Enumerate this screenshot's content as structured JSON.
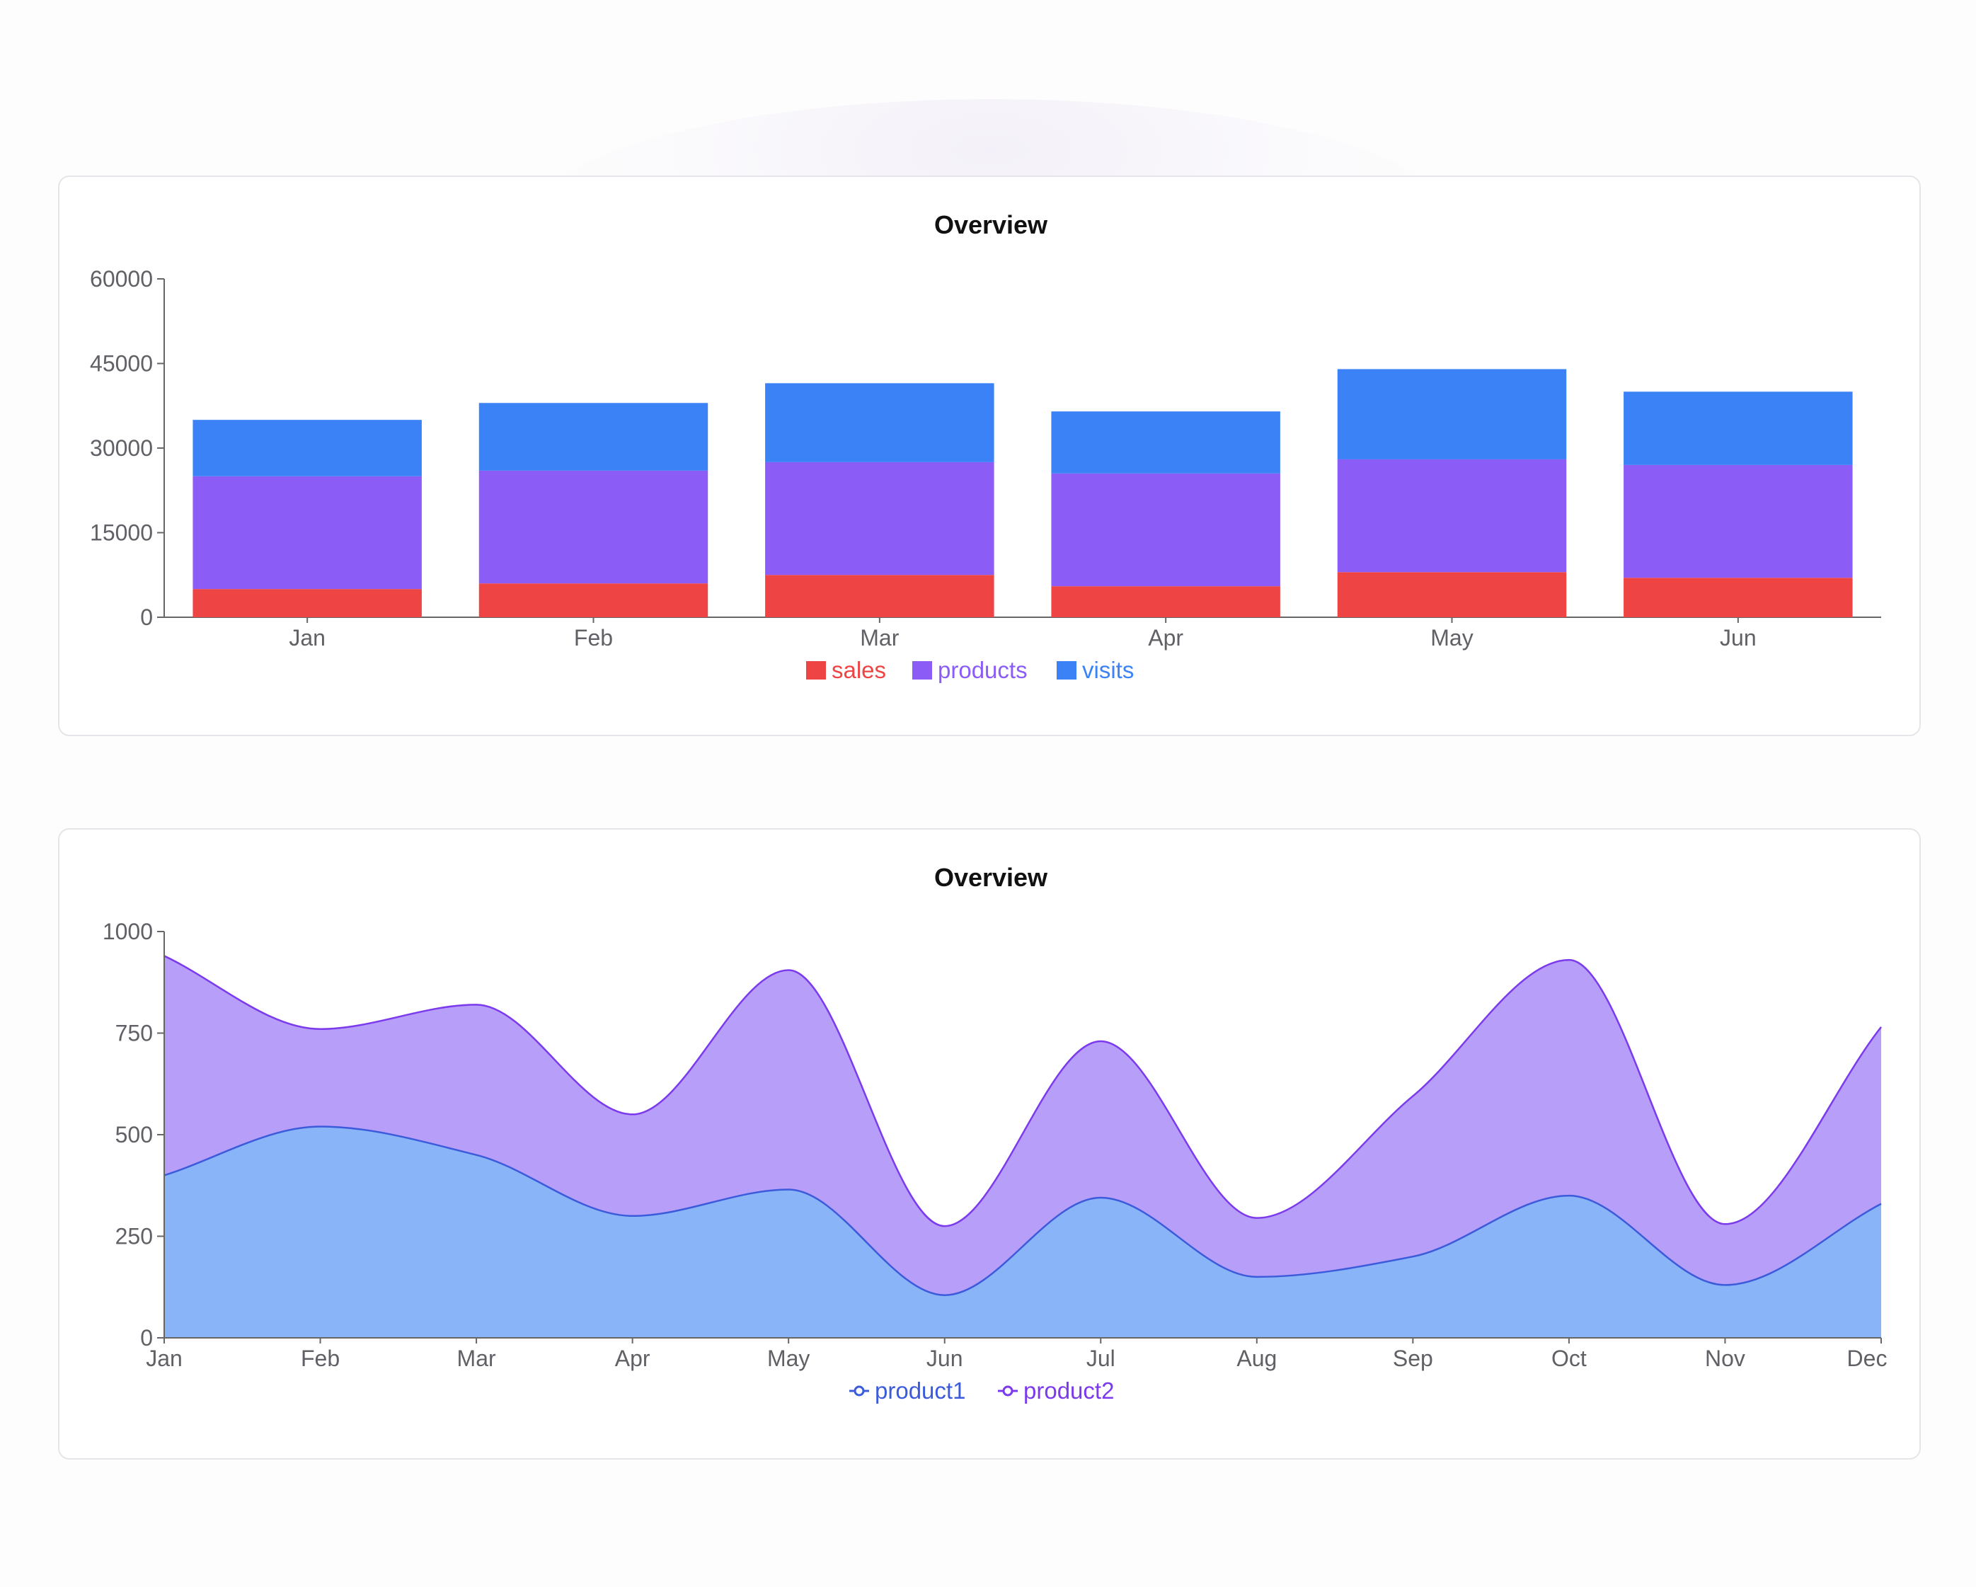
{
  "charts": [
    {
      "id": "bar",
      "chart_data": {
        "type": "bar",
        "stacked": true,
        "title": "Overview",
        "categories": [
          "Jan",
          "Feb",
          "Mar",
          "Apr",
          "May",
          "Jun"
        ],
        "series": [
          {
            "name": "sales",
            "color": "#ef4444",
            "values": [
              5000,
              6000,
              7500,
              5500,
              8000,
              7000
            ]
          },
          {
            "name": "products",
            "color": "#8b5cf6",
            "values": [
              20000,
              20000,
              20000,
              20000,
              20000,
              20000
            ]
          },
          {
            "name": "visits",
            "color": "#3b82f6",
            "values": [
              10000,
              12000,
              14000,
              11000,
              16000,
              13000
            ]
          }
        ],
        "ylim": [
          0,
          60000
        ],
        "yticks": [
          0,
          15000,
          30000,
          45000,
          60000
        ],
        "xlabel": "",
        "ylabel": "",
        "legend": "bottom-center"
      }
    },
    {
      "id": "area",
      "chart_data": {
        "type": "area",
        "stacked": true,
        "title": "Overview",
        "categories": [
          "Jan",
          "Feb",
          "Mar",
          "Apr",
          "May",
          "Jun",
          "Jul",
          "Aug",
          "Sep",
          "Oct",
          "Nov",
          "Dec"
        ],
        "series": [
          {
            "name": "product1",
            "color": "#3b5bdb",
            "fill": "#8ab4f8",
            "values": [
              400,
              520,
              450,
              300,
              365,
              105,
              345,
              150,
              200,
              350,
              130,
              330
            ]
          },
          {
            "name": "product2",
            "color": "#7c3aed",
            "fill": "#b79ef9",
            "values": [
              540,
              240,
              370,
              250,
              540,
              170,
              385,
              145,
              395,
              580,
              150,
              435
            ]
          }
        ],
        "ylim": [
          0,
          1000
        ],
        "yticks": [
          0,
          250,
          500,
          750,
          1000
        ],
        "xlabel": "",
        "ylabel": "",
        "legend": "bottom-center"
      }
    }
  ]
}
